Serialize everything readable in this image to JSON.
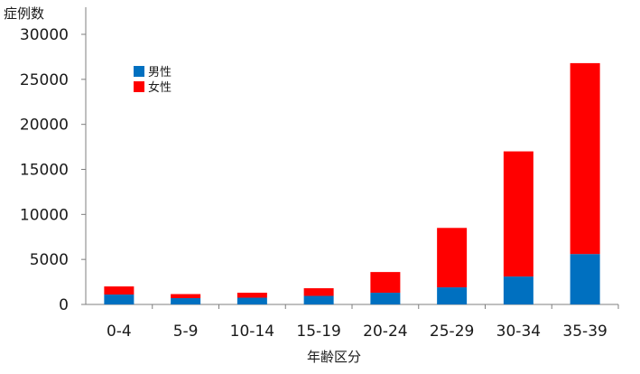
{
  "chart_data": {
    "type": "bar",
    "stacked": true,
    "title": "",
    "ylabel": "症例数",
    "xlabel": "年齢区分",
    "ylim": [
      0,
      30000
    ],
    "yticks": [
      0,
      5000,
      10000,
      15000,
      20000,
      25000,
      30000
    ],
    "grid": false,
    "legend_position": "top-left",
    "categories": [
      "0-4",
      "5-9",
      "10-14",
      "15-19",
      "20-24",
      "25-29",
      "30-34",
      "35-39"
    ],
    "series": [
      {
        "name": "男性",
        "color": "#0070c0",
        "values": [
          1100,
          700,
          750,
          950,
          1300,
          1900,
          3100,
          5600
        ]
      },
      {
        "name": "女性",
        "color": "#ff0000",
        "values": [
          900,
          450,
          550,
          850,
          2300,
          6600,
          13900,
          21200
        ]
      }
    ]
  }
}
